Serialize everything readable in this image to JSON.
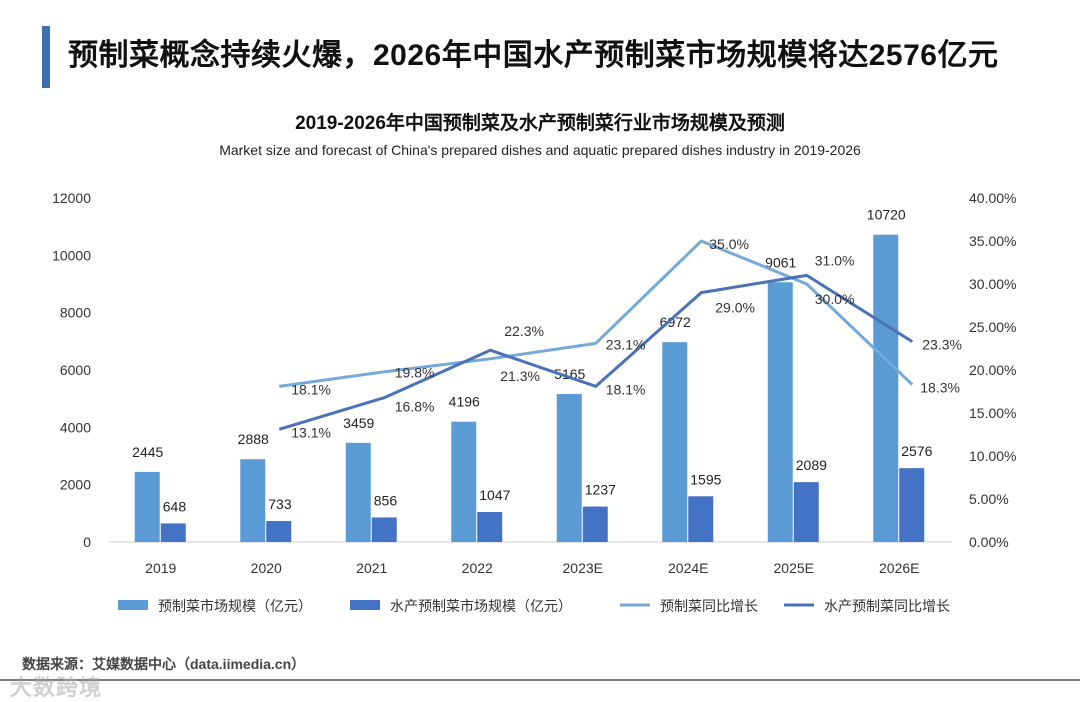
{
  "headline": "预制菜概念持续火爆，2026年中国水产预制菜市场规模将达2576亿元",
  "source": "数据来源：艾媒数据中心（data.iimedia.cn）",
  "watermark": "大数跨境",
  "colors": {
    "accent": "#3a6fb0",
    "bar1": "#5b9bd5",
    "bar2": "#4472c4",
    "line1": "#74a9d8",
    "line2": "#4a72b8"
  },
  "chart_data": {
    "type": "bar",
    "title": "2019-2026年中国预制菜及水产预制菜行业市场规模及预测",
    "subtitle": "Market size and forecast of China's prepared dishes and aquatic prepared dishes industry in 2019-2026",
    "categories": [
      "2019",
      "2020",
      "2021",
      "2022",
      "2023E",
      "2024E",
      "2025E",
      "2026E"
    ],
    "ylim": [
      0,
      12000
    ],
    "yticks": [
      "0",
      "2000",
      "4000",
      "6000",
      "8000",
      "10000",
      "12000"
    ],
    "y2lim": [
      0,
      40
    ],
    "y2ticks": [
      "0.00%",
      "5.00%",
      "10.00%",
      "15.00%",
      "20.00%",
      "25.00%",
      "30.00%",
      "35.00%",
      "40.00%"
    ],
    "grid": false,
    "legend_position": "bottom",
    "series": [
      {
        "name": "预制菜市场规模（亿元）",
        "kind": "bar",
        "axis": "left",
        "values": [
          2445,
          2888,
          3459,
          4196,
          5165,
          6972,
          9061,
          10720
        ],
        "labels": [
          "2445",
          "2888",
          "3459",
          "4196",
          "5165",
          "6972",
          "9061",
          "10720"
        ]
      },
      {
        "name": "水产预制菜市场规模（亿元）",
        "kind": "bar",
        "axis": "left",
        "values": [
          648,
          733,
          856,
          1047,
          1237,
          1595,
          2089,
          2576
        ],
        "labels": [
          "648",
          "733",
          "856",
          "1047",
          "1237",
          "1595",
          "2089",
          "2576"
        ]
      },
      {
        "name": "预制菜同比增长",
        "kind": "line",
        "axis": "right",
        "values": [
          null,
          18.1,
          19.8,
          21.3,
          23.1,
          35.0,
          30.0,
          18.3
        ],
        "labels": [
          "",
          "18.1%",
          "19.8%",
          "21.3%",
          "23.1%",
          "35.0%",
          "30.0%",
          "18.3%"
        ]
      },
      {
        "name": "水产预制菜同比增长",
        "kind": "line",
        "axis": "right",
        "values": [
          null,
          13.1,
          16.8,
          22.3,
          18.1,
          29.0,
          31.0,
          23.3
        ],
        "labels": [
          "",
          "13.1%",
          "16.8%",
          "22.3%",
          "18.1%",
          "29.0%",
          "31.0%",
          "23.3%"
        ]
      }
    ]
  }
}
